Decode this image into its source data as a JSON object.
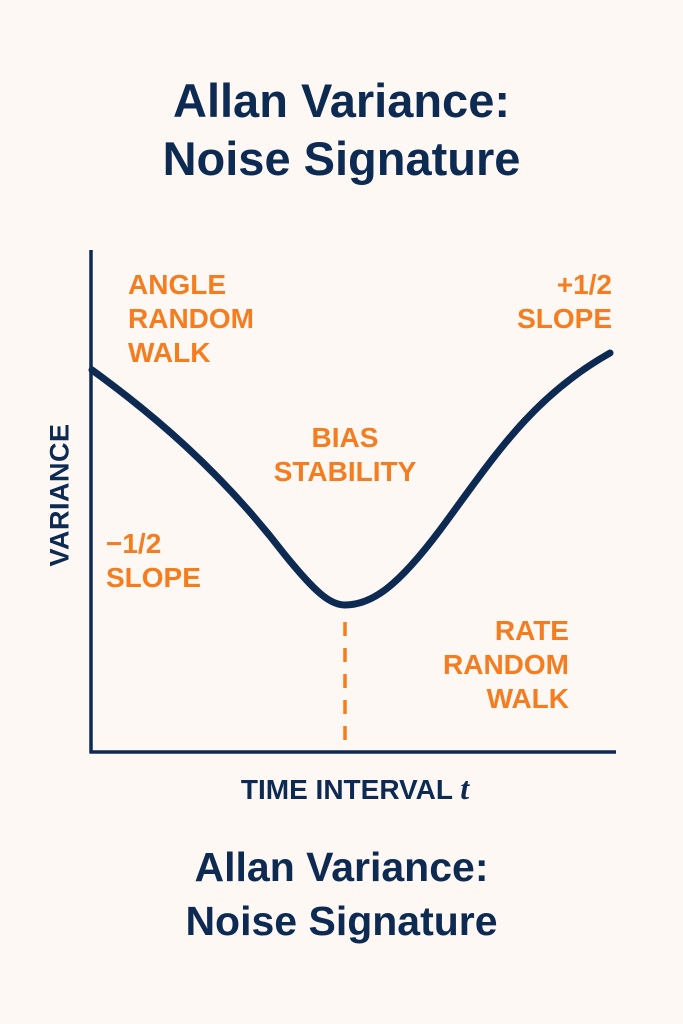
{
  "title": {
    "line1": "Allan Variance:",
    "line2": "Noise Signature"
  },
  "subtitle": {
    "line1": "Allan Variance:",
    "line2": "Noise Signature"
  },
  "axes": {
    "y_label": "VARIANCE",
    "x_label": "TIME INTERVAL",
    "x_symbol": "t"
  },
  "annotations": {
    "angle_random_walk": "ANGLE\nRANDOM\nWALK",
    "plus_half_slope": "+1/2\nSLOPE",
    "bias_stability": "BIAS\nSTABILITY",
    "minus_half_slope": "−1/2\nSLOPE",
    "rate_random_walk": "RATE\nRANDOM\nWALK"
  },
  "colors": {
    "navy": "#0d2a52",
    "orange": "#f57c1f",
    "background": "#fdf8f3"
  }
}
